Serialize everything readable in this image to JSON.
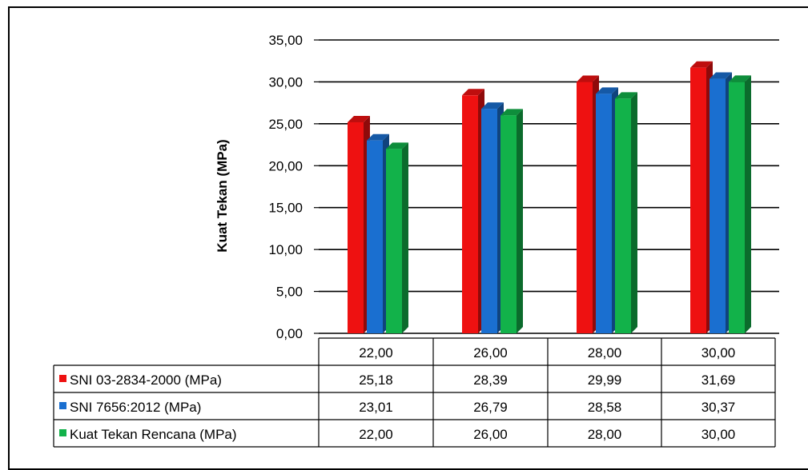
{
  "chart_data": {
    "type": "bar",
    "ylabel": "Kuat Tekan (MPa)",
    "xlabel": "",
    "ylim": [
      0,
      35
    ],
    "y_ticks": [
      "0,00",
      "5,00",
      "10,00",
      "15,00",
      "20,00",
      "25,00",
      "30,00",
      "35,00"
    ],
    "grid": true,
    "legend_placement": "data-table",
    "categories": [
      "22,00",
      "26,00",
      "28,00",
      "30,00"
    ],
    "series": [
      {
        "name": "SNI 03-2834-2000 (MPa)",
        "values": [
          25.18,
          28.39,
          29.99,
          31.69
        ],
        "labels": [
          "25,18",
          "28,39",
          "29,99",
          "31,69"
        ],
        "color": "#ee1111"
      },
      {
        "name": "SNI 7656:2012 (MPa)",
        "values": [
          23.01,
          26.79,
          28.58,
          30.37
        ],
        "labels": [
          "23,01",
          "26,79",
          "28,58",
          "30,37"
        ],
        "color": "#1a6fd0"
      },
      {
        "name": "Kuat Tekan Rencana (MPa)",
        "values": [
          22.0,
          26.0,
          28.0,
          30.0
        ],
        "labels": [
          "22,00",
          "26,00",
          "28,00",
          "30,00"
        ],
        "color": "#12b24a"
      }
    ]
  }
}
